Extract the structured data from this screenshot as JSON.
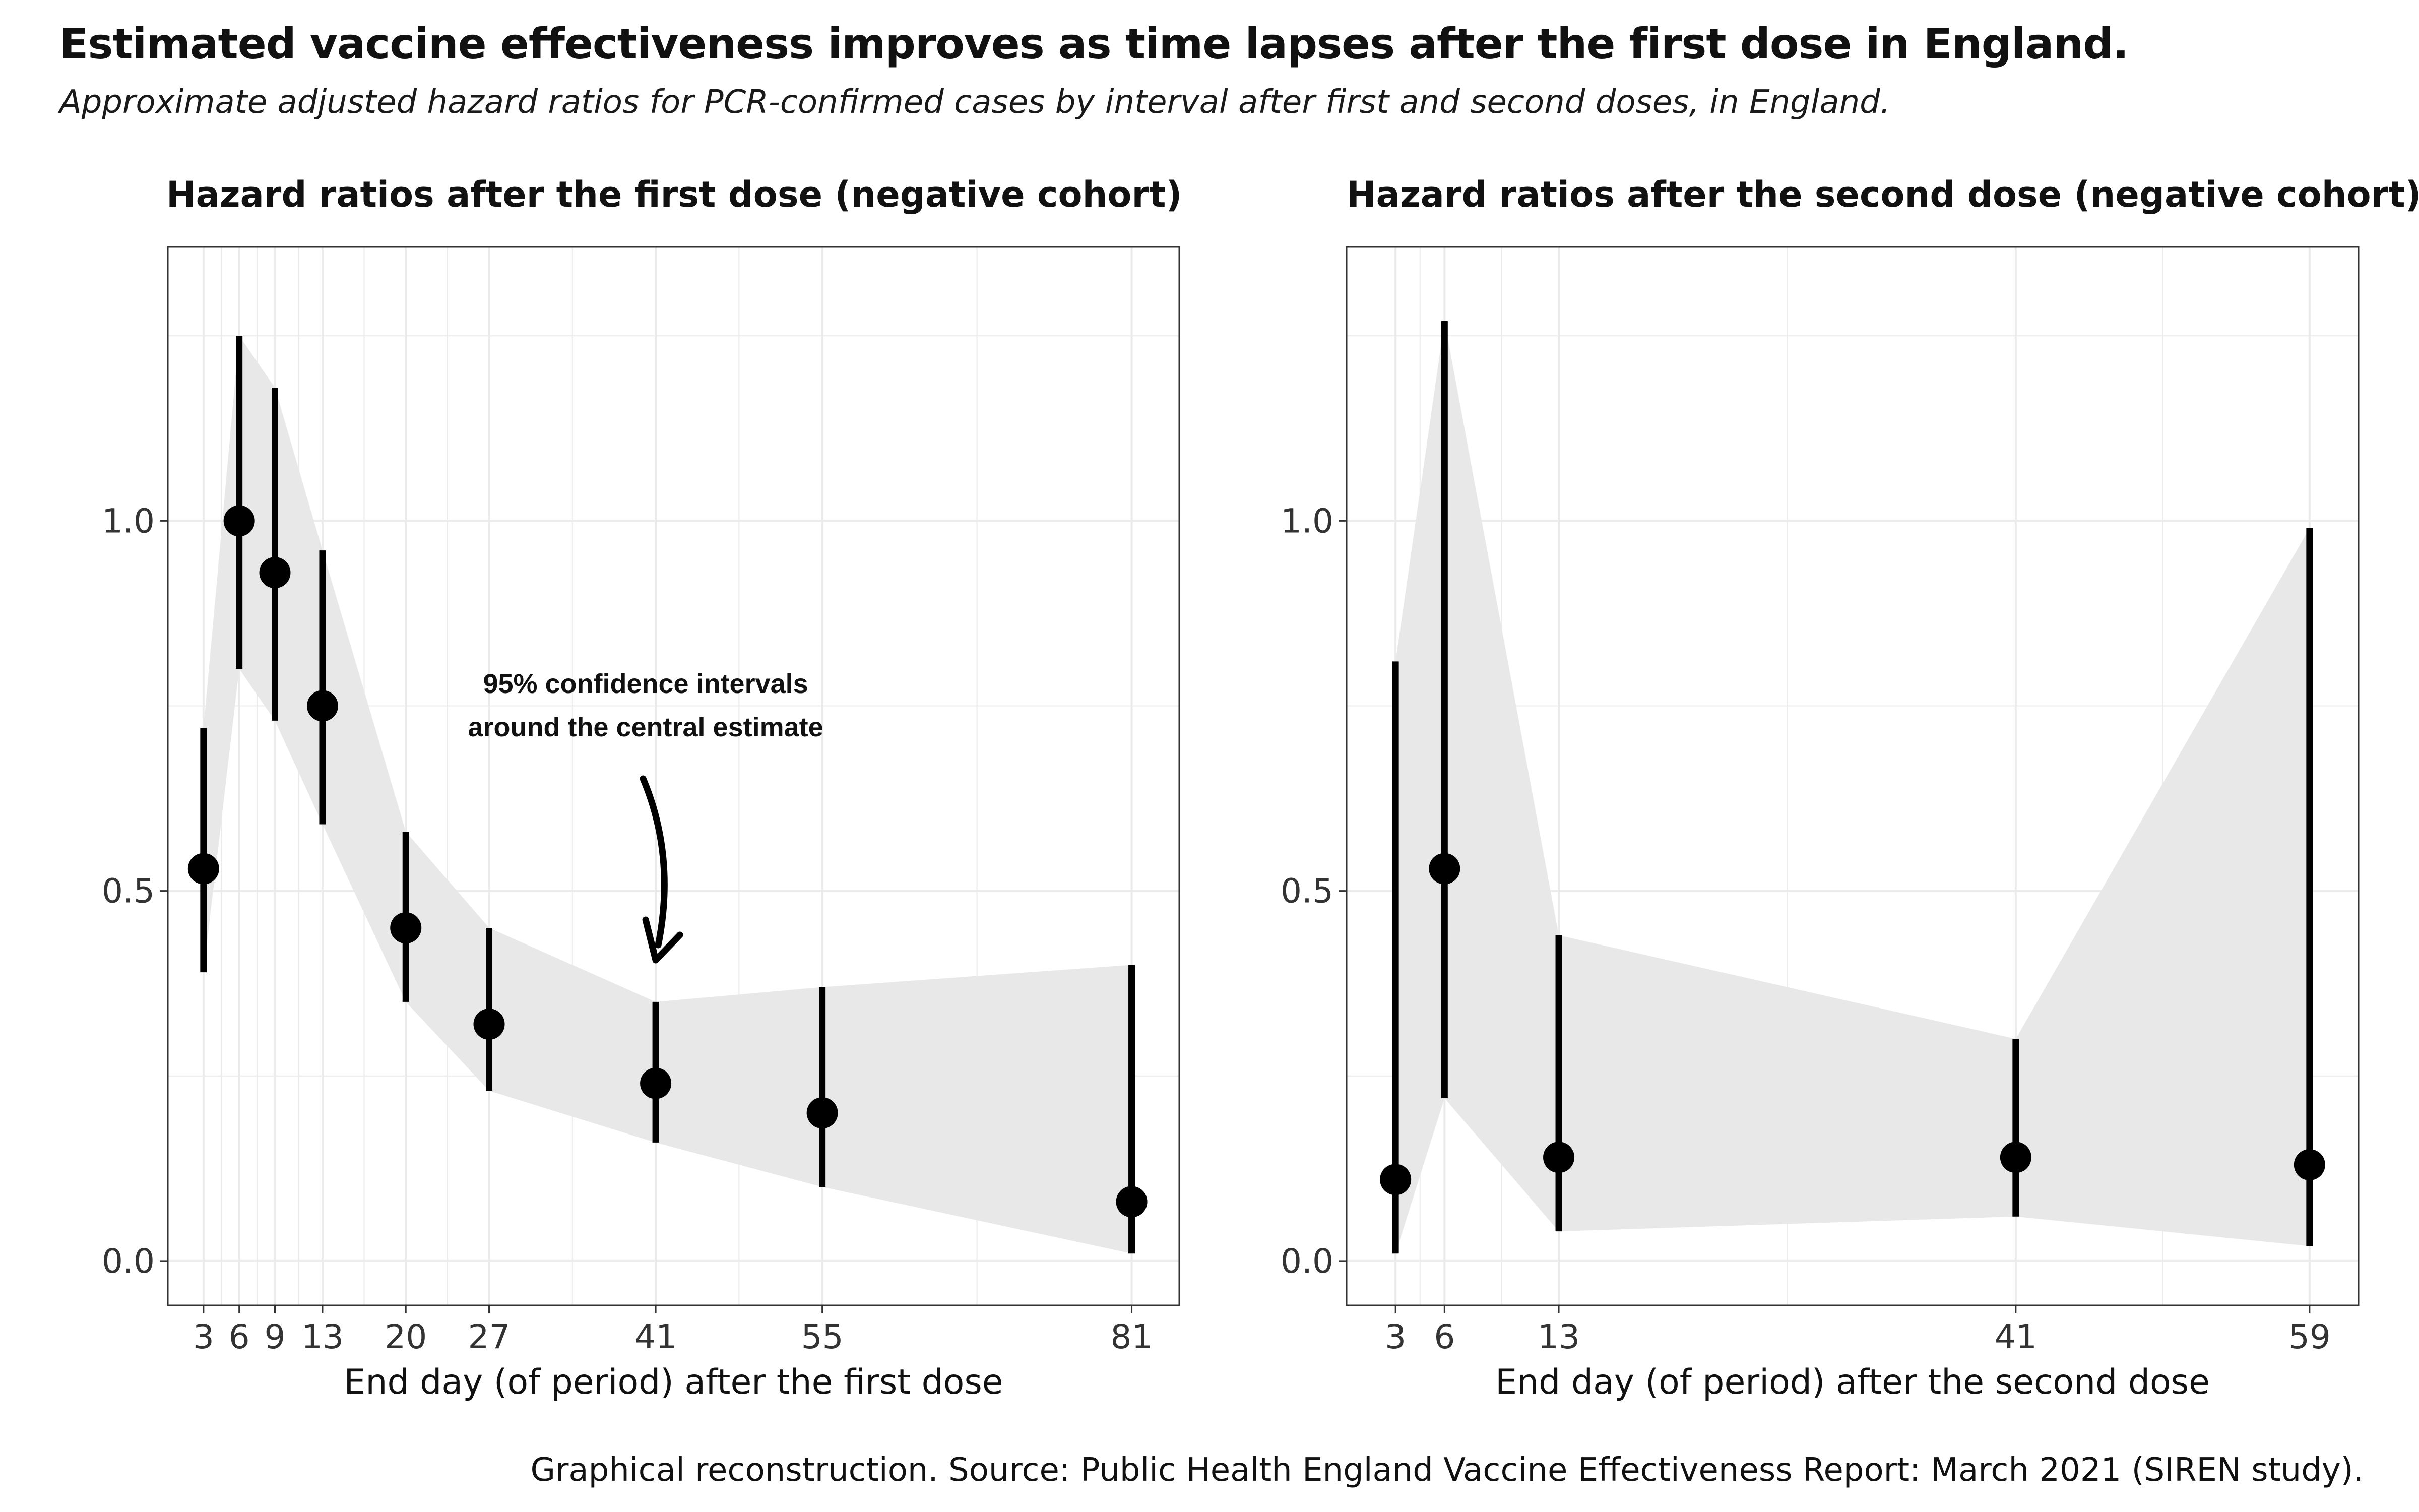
{
  "title": "Estimated vaccine effectiveness improves as time lapses after the first dose in England.",
  "subtitle": "Approximate adjusted hazard ratios for PCR-confirmed cases by interval after first and second doses, in England.",
  "caption": "Graphical reconstruction. Source: Public Health England Vaccine Effectiveness Report: March 2021 (SIREN study).",
  "colors": {
    "band": "#e8e8e8",
    "point": "#000000",
    "grid": "#ebebeb",
    "panel_border": "#333333"
  },
  "chart_data": [
    {
      "type": "scatter",
      "title": "Hazard ratios after the first dose (negative cohort)",
      "xlabel": "End day (of period) after the first dose",
      "ylabel": "",
      "x": [
        3,
        6,
        9,
        13,
        20,
        27,
        41,
        55,
        81
      ],
      "xticks": [
        3,
        6,
        9,
        13,
        20,
        27,
        41,
        55,
        81
      ],
      "xlim": [
        0,
        85
      ],
      "yticks": [
        "0.0",
        "0.5",
        "1.0"
      ],
      "ylim": [
        -0.06,
        1.37
      ],
      "grid": true,
      "series": [
        {
          "estimate": [
            0.53,
            1.0,
            0.93,
            0.75,
            0.45,
            0.32,
            0.24,
            0.2,
            0.08
          ],
          "lower": [
            0.39,
            0.8,
            0.73,
            0.59,
            0.35,
            0.23,
            0.16,
            0.1,
            0.01
          ],
          "upper": [
            0.72,
            1.25,
            1.18,
            0.96,
            0.58,
            0.45,
            0.35,
            0.37,
            0.4
          ]
        }
      ],
      "annotation": {
        "lines": [
          "95% confidence intervals",
          "around the central estimate"
        ],
        "points_to_x": 41
      }
    },
    {
      "type": "scatter",
      "title": "Hazard ratios after the second dose (negative cohort)",
      "xlabel": "End day (of period) after the second dose",
      "ylabel": "",
      "x": [
        3,
        6,
        13,
        41,
        59
      ],
      "xticks": [
        3,
        6,
        13,
        41,
        59
      ],
      "xlim": [
        0,
        62
      ],
      "yticks": [
        "0.0",
        "0.5",
        "1.0"
      ],
      "ylim": [
        -0.06,
        1.37
      ],
      "grid": true,
      "series": [
        {
          "estimate": [
            0.11,
            0.53,
            0.14,
            0.14,
            0.13
          ],
          "lower": [
            0.01,
            0.22,
            0.04,
            0.06,
            0.02
          ],
          "upper": [
            0.81,
            1.27,
            0.44,
            0.3,
            0.99
          ]
        }
      ]
    }
  ]
}
